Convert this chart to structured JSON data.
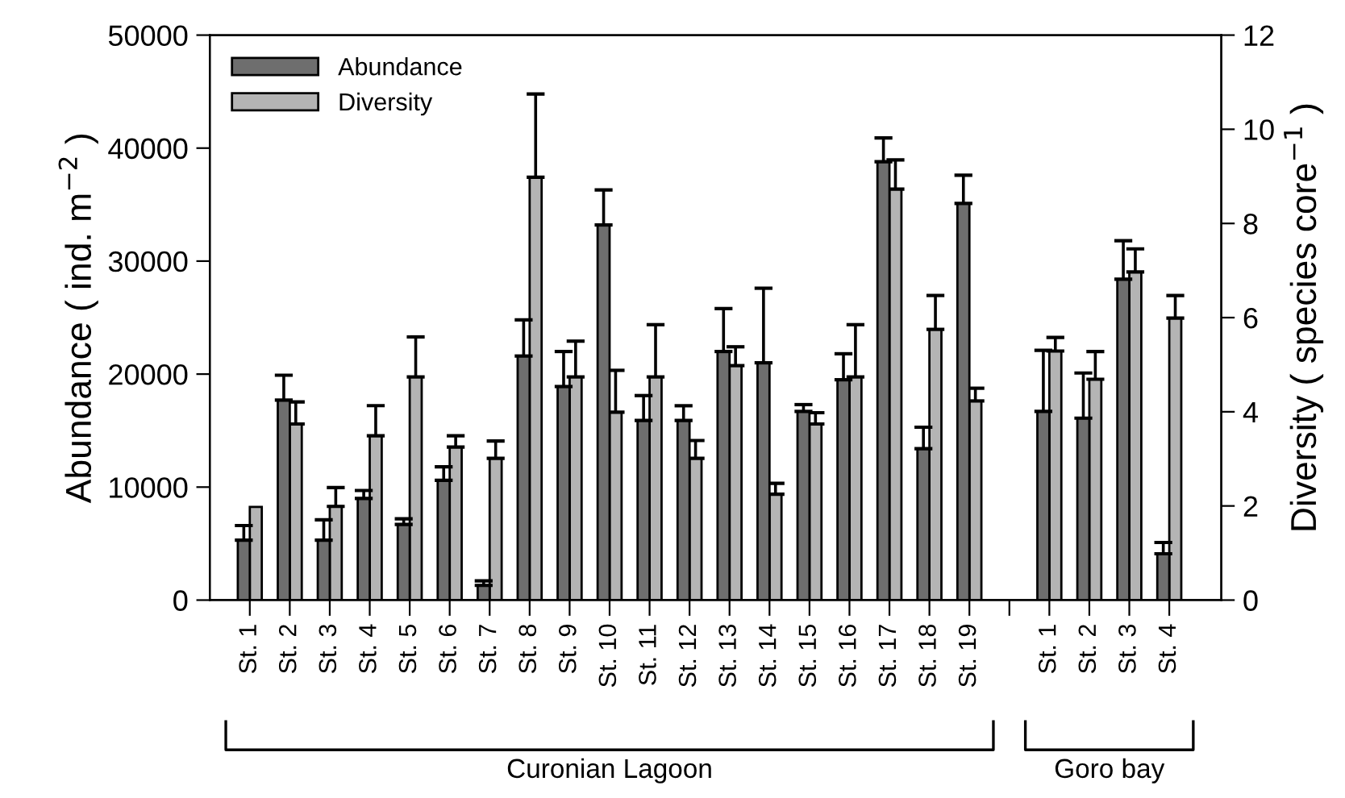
{
  "chart_data": {
    "type": "bar",
    "ylabel": "Abundance ( ind. m$^{−2}$ )",
    "y2label": "Diversity ( species core$^{−1}$ )",
    "categories": [
      "St. 1",
      "St. 2",
      "St. 3",
      "St. 4",
      "St. 5",
      "St. 6",
      "St. 7",
      "St. 8",
      "St. 9",
      "St. 10",
      "St. 11",
      "St. 12",
      "St. 13",
      "St. 14",
      "St. 15",
      "St. 16",
      "St. 17",
      "St. 18",
      "St. 19",
      null,
      "St. 1",
      "St. 2",
      "St. 3",
      "St. 4"
    ],
    "series": [
      {
        "name": "Abundance",
        "color": "#6e6e6e",
        "values": [
          5300,
          17700,
          5300,
          9000,
          6700,
          10600,
          1300,
          21600,
          18900,
          33200,
          15900,
          15900,
          22000,
          21000,
          16700,
          19500,
          38800,
          13400,
          35100,
          null,
          16700,
          16100,
          28400,
          4100
        ],
        "errors": [
          [
            5300,
            6600
          ],
          [
            17700,
            19900
          ],
          [
            5300,
            7100
          ],
          [
            9000,
            9700
          ],
          [
            6700,
            7200
          ],
          [
            10600,
            11800
          ],
          [
            1300,
            1700
          ],
          [
            21600,
            24800
          ],
          [
            18900,
            22000
          ],
          [
            33200,
            36300
          ],
          [
            15900,
            18100
          ],
          [
            15900,
            17200
          ],
          [
            22000,
            25800
          ],
          [
            21000,
            27600
          ],
          [
            16700,
            17300
          ],
          [
            19500,
            21800
          ],
          [
            38800,
            40900
          ],
          [
            13400,
            15300
          ],
          [
            35100,
            37600
          ],
          null,
          [
            16700,
            22100
          ],
          [
            16100,
            20100
          ],
          [
            28400,
            31800
          ],
          [
            4100,
            5100
          ]
        ]
      },
      {
        "name": "Diversity",
        "color": "#b4b4b4",
        "axis": "y2",
        "values": [
          1.98,
          3.74,
          1.99,
          3.49,
          4.74,
          3.25,
          3.01,
          8.98,
          4.74,
          3.99,
          4.74,
          3.01,
          4.98,
          2.25,
          3.74,
          4.74,
          8.73,
          5.75,
          4.23,
          null,
          5.29,
          4.69,
          6.97,
          5.99
        ],
        "errors": [
          null,
          [
            3.74,
            4.21
          ],
          [
            1.99,
            2.39
          ],
          [
            3.49,
            4.13
          ],
          [
            4.74,
            5.59
          ],
          [
            3.25,
            3.49
          ],
          [
            3.01,
            3.38
          ],
          [
            8.98,
            10.75
          ],
          [
            4.74,
            5.5
          ],
          [
            3.99,
            4.88
          ],
          [
            4.74,
            5.85
          ],
          [
            3.01,
            3.39
          ],
          [
            4.98,
            5.38
          ],
          [
            2.25,
            2.48
          ],
          [
            3.74,
            3.98
          ],
          [
            4.74,
            5.85
          ],
          [
            8.73,
            9.35
          ],
          [
            5.75,
            6.47
          ],
          [
            4.23,
            4.5
          ],
          null,
          [
            5.29,
            5.58
          ],
          [
            4.69,
            5.28
          ],
          [
            6.97,
            7.46
          ],
          [
            5.99,
            6.47
          ]
        ]
      }
    ],
    "ylim": [
      0,
      50000
    ],
    "yticks": [
      0,
      10000,
      20000,
      30000,
      40000,
      50000
    ],
    "y2lim": [
      0,
      12
    ],
    "y2ticks": [
      0,
      2,
      4,
      6,
      8,
      10,
      12
    ],
    "legend": "top left",
    "grid": false,
    "annotations": [
      "Curonian Lagoon",
      "Goro bay"
    ]
  }
}
